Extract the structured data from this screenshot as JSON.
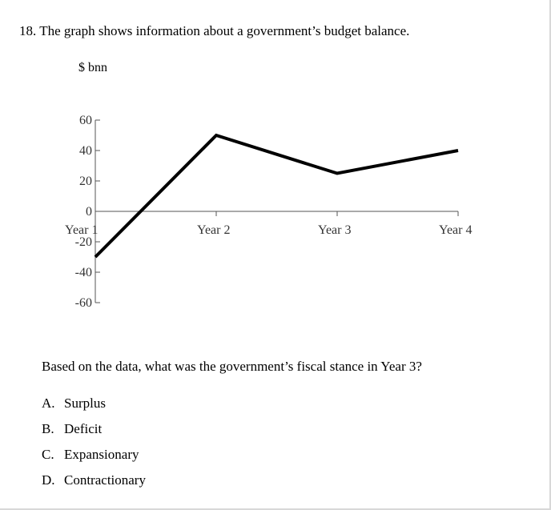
{
  "question": {
    "text": "18. The graph shows information about a government’s budget balance.",
    "prompt": "Based on the data, what was the government’s fiscal stance in Year 3?",
    "options": [
      {
        "letter": "A.",
        "text": "Surplus"
      },
      {
        "letter": "B.",
        "text": "Deficit"
      },
      {
        "letter": "C.",
        "text": "Expansionary"
      },
      {
        "letter": "D.",
        "text": "Contractionary"
      }
    ]
  },
  "chart_data": {
    "type": "line",
    "ylabel": "$ bnn",
    "categories": [
      "Year 1",
      "Year 2",
      "Year 3",
      "Year 4"
    ],
    "values": [
      -30,
      50,
      25,
      40
    ],
    "yticks": [
      60,
      40,
      20,
      0,
      -20,
      -40,
      -60
    ],
    "ylim": [
      -60,
      60
    ],
    "grid": false,
    "line_color": "#000000"
  }
}
